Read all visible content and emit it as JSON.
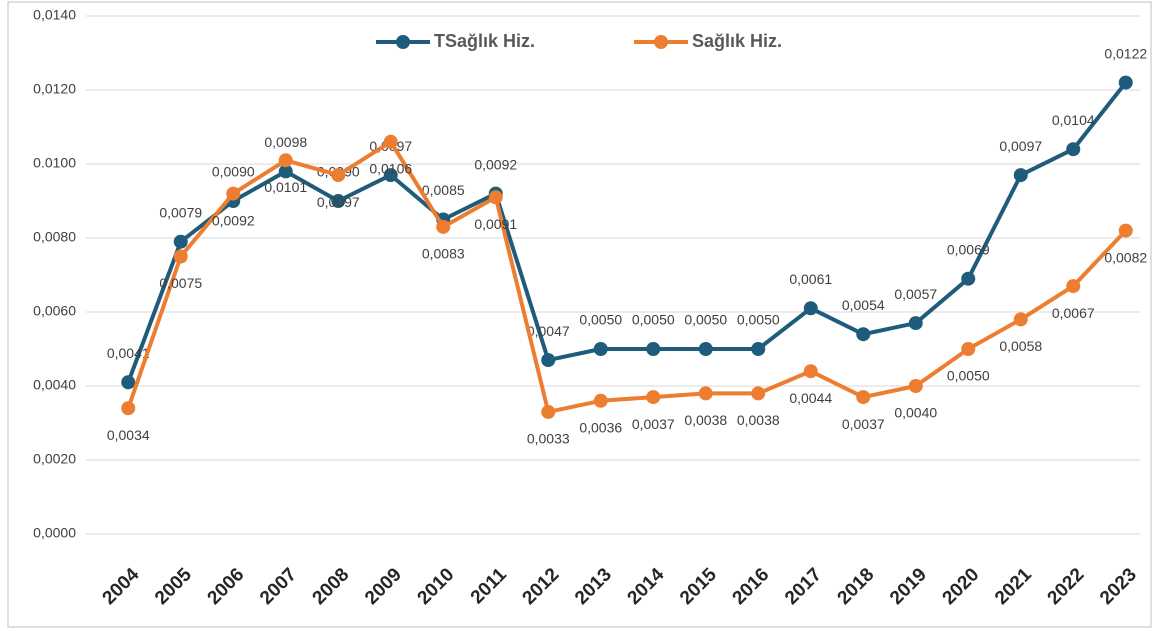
{
  "chart_data": {
    "type": "line",
    "categories": [
      "2004",
      "2005",
      "2006",
      "2007",
      "2008",
      "2009",
      "2010",
      "2011",
      "2012",
      "2013",
      "2014",
      "2015",
      "2016",
      "2017",
      "2018",
      "2019",
      "2020",
      "2021",
      "2022",
      "2023"
    ],
    "series": [
      {
        "name": "TSağlık Hiz.",
        "color": "#1f5b7a",
        "values": [
          0.0041,
          0.0079,
          0.009,
          0.0098,
          0.009,
          0.0097,
          0.0085,
          0.0092,
          0.0047,
          0.005,
          0.005,
          0.005,
          0.005,
          0.0061,
          0.0054,
          0.0057,
          0.0069,
          0.0097,
          0.0104,
          0.0122
        ],
        "value_labels": [
          "0,0041",
          "0,0079",
          "0,0090",
          "0,0098",
          "0,0090",
          "0,0097",
          "0,0085",
          "0,0092",
          "0,0047",
          "0,0050",
          "0,0050",
          "0,0050",
          "0,0050",
          "0,0061",
          "0,0054",
          "0,0057",
          "0,0069",
          "0,0097",
          "0,0104",
          "0,0122"
        ]
      },
      {
        "name": "Sağlık Hiz.",
        "color": "#ed7d31",
        "values": [
          0.0034,
          0.0075,
          0.0092,
          0.0101,
          0.0097,
          0.0106,
          0.0083,
          0.0091,
          0.0033,
          0.0036,
          0.0037,
          0.0038,
          0.0038,
          0.0044,
          0.0037,
          0.004,
          0.005,
          0.0058,
          0.0067,
          0.0082
        ],
        "value_labels": [
          "0,0034",
          "0,0075",
          "0,0092",
          "0,0101",
          "0,0097",
          "0,0106",
          "0,0083",
          "0,0091",
          "0,0033",
          "0,0036",
          "0,0037",
          "0,0038",
          "0,0038",
          "0,0044",
          "0,0037",
          "0,0040",
          "0,0050",
          "0,0058",
          "0,0067",
          "0,0082"
        ]
      }
    ],
    "ylim": [
      0,
      0.014
    ],
    "yticks": [
      {
        "value": 0,
        "label": "0,0000"
      },
      {
        "value": 0.002,
        "label": "0,0020"
      },
      {
        "value": 0.004,
        "label": "0,0040"
      },
      {
        "value": 0.006,
        "label": "0,0060"
      },
      {
        "value": 0.008,
        "label": "0,0080"
      },
      {
        "value": 0.01,
        "label": "0.0100"
      },
      {
        "value": 0.012,
        "label": "0,0120"
      },
      {
        "value": 0.014,
        "label": "0,0140"
      }
    ],
    "grid": true,
    "legend": "top"
  }
}
